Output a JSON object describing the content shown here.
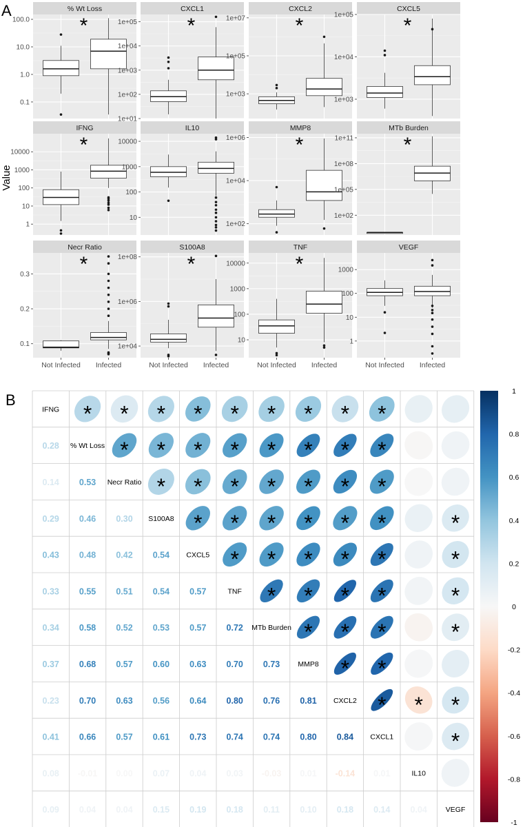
{
  "figure": {
    "panel_a_label": "A",
    "panel_b_label": "B",
    "y_axis_title": "Value",
    "x_categories": [
      "Not Infected",
      "Infected"
    ],
    "significance_mark": "*"
  },
  "chart_data": [
    {
      "type": "boxplot",
      "panel": "A",
      "scale": "mixed (log10 except Necr Ratio)",
      "categories": [
        "Not Infected",
        "Infected"
      ],
      "facets": [
        {
          "title": "% Wt Loss",
          "log": true,
          "ylim": [
            0.025,
            150
          ],
          "ticks": [
            0.1,
            1,
            10,
            100
          ],
          "tick_labels": [
            "0.1",
            "1.0",
            "10.0",
            "100.0"
          ],
          "significant": true,
          "groups": [
            {
              "q1": 0.9,
              "median": 1.6,
              "q3": 3.2,
              "low": 0.2,
              "high": 11,
              "outliers": [
                0.035,
                28
              ]
            },
            {
              "q1": 1.6,
              "median": 7,
              "q3": 19,
              "low": 0.035,
              "high": 110,
              "outliers": []
            }
          ]
        },
        {
          "title": "CXCL1",
          "log": true,
          "ylim": [
            10,
            200000
          ],
          "ticks": [
            10,
            100,
            1000,
            10000,
            100000
          ],
          "tick_labels": [
            "1e+01",
            "1e+02",
            "1e+03",
            "1e+04",
            "1e+05"
          ],
          "significant": true,
          "groups": [
            {
              "q1": 50,
              "median": 80,
              "q3": 140,
              "low": 15,
              "high": 400,
              "outliers": [
                1200,
                2200,
                3300
              ]
            },
            {
              "q1": 400,
              "median": 1000,
              "q3": 3500,
              "low": 10,
              "high": 60000,
              "outliers": [
                160000
              ]
            }
          ]
        },
        {
          "title": "CXCL2",
          "log": true,
          "ylim": [
            50,
            15000000
          ],
          "ticks": [
            1000,
            100000,
            10000000
          ],
          "tick_labels": [
            "1e+03",
            "1e+05",
            "1e+07"
          ],
          "significant": true,
          "groups": [
            {
              "q1": 300,
              "median": 450,
              "q3": 700,
              "low": 150,
              "high": 1200,
              "outliers": [
                2000,
                2900
              ]
            },
            {
              "q1": 800,
              "median": 1800,
              "q3": 6500,
              "low": 200,
              "high": 450000,
              "outliers": [
                1000000
              ]
            }
          ]
        },
        {
          "title": "CXCL5",
          "log": true,
          "ylim": [
            350,
            100000
          ],
          "ticks": [
            1000,
            10000,
            100000
          ],
          "tick_labels": [
            "1e+03",
            "1e+04",
            "1e+05"
          ],
          "significant": true,
          "groups": [
            {
              "q1": 1100,
              "median": 1400,
              "q3": 2000,
              "low": 600,
              "high": 4200,
              "outliers": [
                11000,
                14000
              ]
            },
            {
              "q1": 2200,
              "median": 3400,
              "q3": 6200,
              "low": 400,
              "high": 80000,
              "outliers": [
                45000
              ]
            }
          ]
        },
        {
          "title": "IFNG",
          "log": true,
          "ylim": [
            0.25,
            100000
          ],
          "ticks": [
            1,
            10,
            100,
            1000,
            10000
          ],
          "tick_labels": [
            "1",
            "10",
            "100",
            "1000",
            "10000"
          ],
          "significant": true,
          "groups": [
            {
              "q1": 12,
              "median": 30,
              "q3": 80,
              "low": 1.5,
              "high": 800,
              "outliers": [
                0.3,
                0.45
              ]
            },
            {
              "q1": 350,
              "median": 850,
              "q3": 1800,
              "low": 100,
              "high": 55000,
              "outliers": [
                6,
                8,
                12,
                15,
                20,
                25,
                30
              ]
            }
          ]
        },
        {
          "title": "IL10",
          "log": true,
          "ylim": [
            2,
            20000
          ],
          "ticks": [
            10,
            100,
            1000,
            10000
          ],
          "tick_labels": [
            "10",
            "100",
            "1000",
            "10000"
          ],
          "significant": false,
          "groups": [
            {
              "q1": 400,
              "median": 600,
              "q3": 1000,
              "low": 150,
              "high": 3000,
              "outliers": [
                45
              ]
            },
            {
              "q1": 550,
              "median": 850,
              "q3": 1500,
              "low": 70,
              "high": 4000,
              "outliers": [
                3,
                4,
                5,
                7,
                10,
                15,
                20,
                30,
                40,
                60,
                12000,
                14000
              ]
            }
          ]
        },
        {
          "title": "MMP8",
          "log": true,
          "ylim": [
            30,
            1500000
          ],
          "ticks": [
            100,
            10000,
            1000000
          ],
          "tick_labels": [
            "1e+02",
            "1e+04",
            "1e+06"
          ],
          "significant": true,
          "groups": [
            {
              "q1": 200,
              "median": 280,
              "q3": 450,
              "low": 80,
              "high": 1200,
              "outliers": [
                5000,
                40
              ]
            },
            {
              "q1": 1200,
              "median": 3000,
              "q3": 30000,
              "low": 150,
              "high": 900000,
              "outliers": [
                60
              ]
            }
          ]
        },
        {
          "title": "MTb Burden",
          "log": true,
          "ylim": [
            0.5,
            300000000000
          ],
          "ticks": [
            100,
            100000,
            100000000,
            100000000000
          ],
          "tick_labels": [
            "1e+02",
            "1e+05",
            "1e+08",
            "1e+11"
          ],
          "significant": true,
          "groups": [
            {
              "q1": 1,
              "median": 1,
              "q3": 1,
              "low": 1,
              "high": 1,
              "outliers": []
            },
            {
              "q1": 1000000,
              "median": 8000000,
              "q3": 50000000,
              "low": 30000,
              "high": 150000000000,
              "outliers": []
            }
          ]
        },
        {
          "title": "Necr Ratio",
          "log": false,
          "ylim": [
            0.06,
            0.36
          ],
          "ticks": [
            0.1,
            0.2,
            0.3
          ],
          "tick_labels": [
            "0.1",
            "0.2",
            "0.3"
          ],
          "significant": true,
          "groups": [
            {
              "q1": 0.088,
              "median": 0.09,
              "q3": 0.108,
              "low": 0.08,
              "high": 0.11,
              "outliers": []
            },
            {
              "q1": 0.111,
              "median": 0.118,
              "q3": 0.132,
              "low": 0.085,
              "high": 0.165,
              "outliers": [
                0.07,
                0.072,
                0.075,
                0.18,
                0.2,
                0.22,
                0.24,
                0.26,
                0.28,
                0.3,
                0.33,
                0.35
              ]
            }
          ]
        },
        {
          "title": "S100A8",
          "log": true,
          "ylim": [
            3000,
            150000000
          ],
          "ticks": [
            10000,
            1000000,
            100000000
          ],
          "tick_labels": [
            "1e+04",
            "1e+06",
            "1e+08"
          ],
          "significant": true,
          "groups": [
            {
              "q1": 15000,
              "median": 20000,
              "q3": 35000,
              "low": 8000,
              "high": 150000,
              "outliers": [
                3500,
                4000,
                600000,
                800000
              ]
            },
            {
              "q1": 70000,
              "median": 180000,
              "q3": 700000,
              "low": 6000,
              "high": 10000000,
              "outliers": [
                4000,
                110000000
              ]
            }
          ]
        },
        {
          "title": "TNF",
          "log": true,
          "ylim": [
            2,
            25000
          ],
          "ticks": [
            10,
            100,
            1000,
            10000
          ],
          "tick_labels": [
            "10",
            "100",
            "1000",
            "10000"
          ],
          "significant": true,
          "groups": [
            {
              "q1": 18,
              "median": 35,
              "q3": 60,
              "low": 5,
              "high": 400,
              "outliers": [
                2.5,
                3
              ]
            },
            {
              "q1": 110,
              "median": 250,
              "q3": 800,
              "low": 8,
              "high": 16000,
              "outliers": [
                5,
                6
              ]
            }
          ]
        },
        {
          "title": "VEGF",
          "log": true,
          "ylim": [
            0.2,
            5000
          ],
          "ticks": [
            1,
            10,
            100,
            1000
          ],
          "tick_labels": [
            "1",
            "10",
            "100",
            "1000"
          ],
          "significant": false,
          "groups": [
            {
              "q1": 80,
              "median": 110,
              "q3": 160,
              "low": 30,
              "high": 350,
              "outliers": [
                2.2,
                16
              ]
            },
            {
              "q1": 80,
              "median": 120,
              "q3": 200,
              "low": 25,
              "high": 600,
              "outliers": [
                0.3,
                0.6,
                2,
                4,
                8,
                15,
                20,
                30,
                1500,
                2500
              ]
            }
          ]
        }
      ]
    },
    {
      "type": "correlation-matrix",
      "panel": "B",
      "variables": [
        "IFNG",
        "% Wt Loss",
        "Necr Ratio",
        "S100A8",
        "CXCL5",
        "TNF",
        "MTb Burden",
        "MMP8",
        "CXCL2",
        "CXCL1",
        "IL10",
        "VEGF"
      ],
      "lower_values": [
        [],
        [
          "0.28"
        ],
        [
          "0.14",
          "0.53"
        ],
        [
          "0.29",
          "0.46",
          "0.30"
        ],
        [
          "0.43",
          "0.48",
          "0.42",
          "0.54"
        ],
        [
          "0.33",
          "0.55",
          "0.51",
          "0.54",
          "0.57"
        ],
        [
          "0.34",
          "0.58",
          "0.52",
          "0.53",
          "0.57",
          "0.72"
        ],
        [
          "0.37",
          "0.68",
          "0.57",
          "0.60",
          "0.63",
          "0.70",
          "0.73"
        ],
        [
          "0.23",
          "0.70",
          "0.63",
          "0.56",
          "0.64",
          "0.80",
          "0.76",
          "0.81"
        ],
        [
          "0.41",
          "0.66",
          "0.57",
          "0.61",
          "0.73",
          "0.74",
          "0.74",
          "0.80",
          "0.84"
        ],
        [
          "0.08",
          "-0.01",
          "0.00",
          "0.07",
          "0.04",
          "0.03",
          "-0.03",
          "0.01",
          "-0.14",
          "0.01"
        ],
        [
          "0.09",
          "0.04",
          "0.04",
          "0.15",
          "0.19",
          "0.18",
          "0.11",
          "0.10",
          "0.18",
          "0.14",
          "0.04"
        ]
      ],
      "significant_pairs": [
        [
          0,
          1
        ],
        [
          0,
          2
        ],
        [
          0,
          3
        ],
        [
          0,
          4
        ],
        [
          0,
          5
        ],
        [
          0,
          6
        ],
        [
          0,
          7
        ],
        [
          0,
          8
        ],
        [
          0,
          9
        ],
        [
          1,
          2
        ],
        [
          1,
          3
        ],
        [
          1,
          4
        ],
        [
          1,
          5
        ],
        [
          1,
          6
        ],
        [
          1,
          7
        ],
        [
          1,
          8
        ],
        [
          1,
          9
        ],
        [
          2,
          3
        ],
        [
          2,
          4
        ],
        [
          2,
          5
        ],
        [
          2,
          6
        ],
        [
          2,
          7
        ],
        [
          2,
          8
        ],
        [
          2,
          9
        ],
        [
          3,
          4
        ],
        [
          3,
          5
        ],
        [
          3,
          6
        ],
        [
          3,
          7
        ],
        [
          3,
          8
        ],
        [
          3,
          9
        ],
        [
          3,
          11
        ],
        [
          4,
          5
        ],
        [
          4,
          6
        ],
        [
          4,
          7
        ],
        [
          4,
          8
        ],
        [
          4,
          9
        ],
        [
          4,
          11
        ],
        [
          5,
          6
        ],
        [
          5,
          7
        ],
        [
          5,
          8
        ],
        [
          5,
          9
        ],
        [
          5,
          11
        ],
        [
          6,
          7
        ],
        [
          6,
          8
        ],
        [
          6,
          9
        ],
        [
          6,
          11
        ],
        [
          7,
          8
        ],
        [
          7,
          9
        ],
        [
          8,
          9
        ],
        [
          8,
          10
        ],
        [
          8,
          11
        ],
        [
          9,
          11
        ]
      ],
      "colorbar": {
        "range": [
          -1,
          1
        ],
        "tick_labels": [
          "1",
          "0.8",
          "0.6",
          "0.4",
          "0.2",
          "0",
          "-0.2",
          "-0.4",
          "-0.6",
          "-0.8",
          "-1"
        ]
      }
    }
  ]
}
